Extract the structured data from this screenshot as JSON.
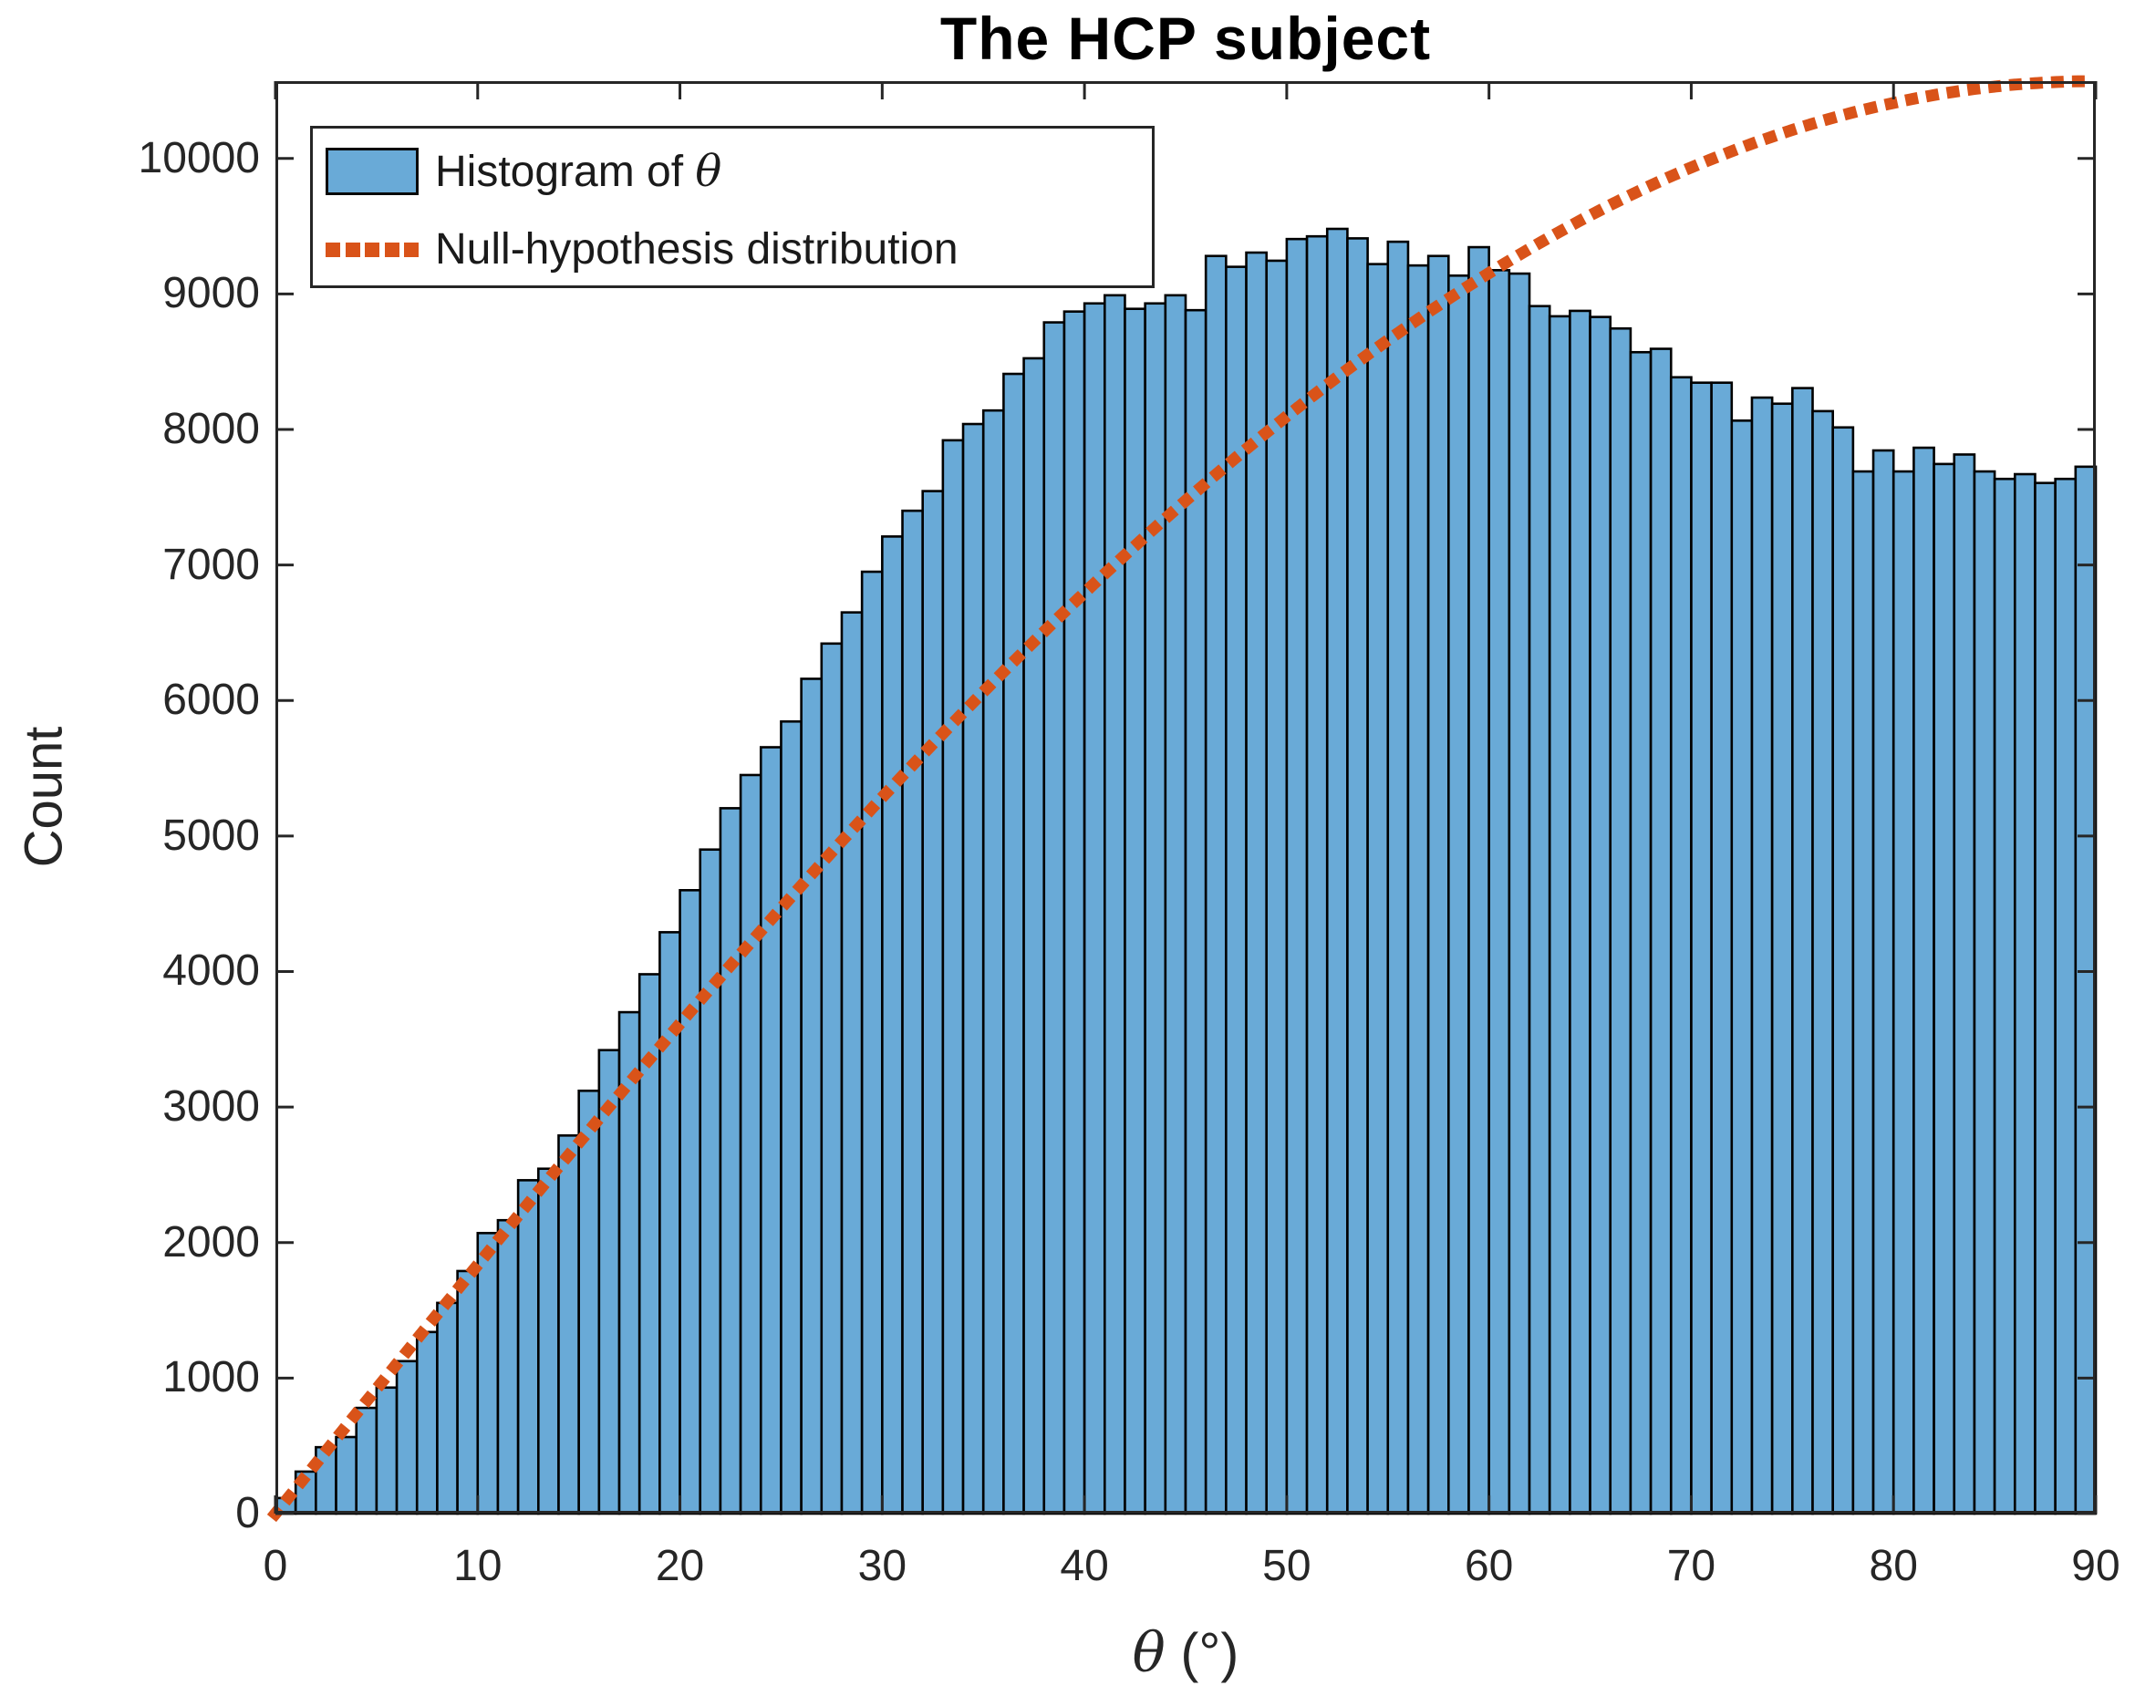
{
  "figure": {
    "title": "The HCP subject"
  },
  "chart_data": {
    "type": "bar",
    "subtype": "histogram-with-null-distribution-curve",
    "title": "The HCP subject",
    "xlabel": "θ (°)",
    "xlabel_symbol": "θ",
    "xlabel_rest": " (°)",
    "ylabel": "Count",
    "xlim": [
      0,
      90
    ],
    "ylim": [
      0,
      10570
    ],
    "xticks": [
      0,
      10,
      20,
      30,
      40,
      50,
      60,
      70,
      80,
      90
    ],
    "yticks": [
      0,
      1000,
      2000,
      3000,
      4000,
      5000,
      6000,
      7000,
      8000,
      9000,
      10000
    ],
    "grid": false,
    "legend_position": "top-left",
    "bin_width_deg": 1,
    "bin_start_deg": 0,
    "bins": [
      115,
      310,
      490,
      565,
      780,
      930,
      1125,
      1340,
      1555,
      1790,
      2070,
      2165,
      2460,
      2545,
      2790,
      3120,
      3420,
      3700,
      3980,
      4290,
      4600,
      4900,
      5205,
      5450,
      5655,
      5845,
      6160,
      6420,
      6650,
      6950,
      7210,
      7400,
      7545,
      7920,
      8040,
      8140,
      8410,
      8525,
      8790,
      8870,
      8930,
      8990,
      8890,
      8930,
      8990,
      8880,
      9280,
      9200,
      9305,
      9245,
      9405,
      9425,
      9480,
      9410,
      9220,
      9385,
      9210,
      9280,
      9135,
      9345,
      9175,
      9150,
      8910,
      8835,
      8875,
      8830,
      8745,
      8570,
      8595,
      8385,
      8345,
      8345,
      8065,
      8235,
      8190,
      8305,
      8135,
      8015,
      7690,
      7845,
      7690,
      7865,
      7745,
      7815,
      7690,
      7635,
      7670,
      7605,
      7635,
      7725
    ],
    "null_curve": {
      "name": "Null-hypothesis distribution",
      "shape": "A*sin(theta)",
      "amplitude": 10570,
      "samples_deg": [
        0,
        5,
        10,
        15,
        20,
        25,
        30,
        35,
        40,
        45,
        50,
        55,
        60,
        65,
        70,
        75,
        80,
        85,
        90
      ],
      "samples_count": [
        0,
        921,
        1835,
        2736,
        3615,
        4467,
        5285,
        6063,
        6794,
        7474,
        8097,
        8658,
        9154,
        9580,
        9933,
        10210,
        10409,
        10530,
        10570
      ]
    }
  },
  "legend": {
    "items": [
      {
        "label": "Histogram of θ",
        "label_prefix": "Histogram of ",
        "label_symbol": "θ",
        "swatch": "bar"
      },
      {
        "label": "Null-hypothesis distribution",
        "swatch": "dotted-line"
      }
    ]
  },
  "colors": {
    "bar_fill": "#69AAD7",
    "bar_edge": "#000000",
    "curve": "#D95319",
    "axis": "#262626",
    "title": "#000000",
    "background": "#ffffff"
  }
}
